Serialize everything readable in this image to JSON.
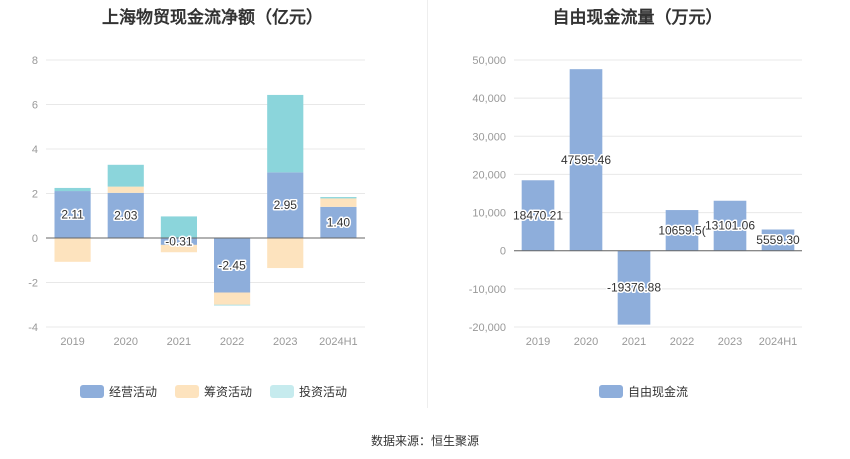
{
  "chart_data": [
    {
      "type": "bar",
      "stacked": true,
      "title": "上海物贸现金流净额（亿元）",
      "categories": [
        "2019",
        "2020",
        "2021",
        "2022",
        "2023",
        "2024H1"
      ],
      "ylim": [
        -4,
        8
      ],
      "yticks": [
        "-4",
        "-2",
        "0",
        "2",
        "4",
        "6",
        "8"
      ],
      "series": [
        {
          "name": "经营活动",
          "color": "#8eaedb",
          "values": [
            2.11,
            2.03,
            -0.31,
            -2.45,
            2.95,
            1.4
          ],
          "labels": [
            "2.11",
            "2.03",
            "-0.31",
            "-2.45",
            "2.95",
            "1.40"
          ]
        },
        {
          "name": "筹资活动",
          "color": "#fde3be",
          "values": [
            -1.07,
            0.28,
            -0.33,
            -0.55,
            -1.35,
            0.38
          ]
        },
        {
          "name": "投资活动",
          "color": "#8bd5db",
          "values": [
            0.14,
            0.98,
            0.97,
            -0.03,
            3.48,
            0.06
          ]
        }
      ],
      "grid": true,
      "legend": "bottom"
    },
    {
      "type": "bar",
      "title": "自由现金流量（万元）",
      "categories": [
        "2019",
        "2020",
        "2021",
        "2022",
        "2023",
        "2024H1"
      ],
      "ylim": [
        -20000,
        50000
      ],
      "yticks": [
        "-20,000",
        "-10,000",
        "0",
        "10,000",
        "20,000",
        "30,000",
        "40,000",
        "50,000"
      ],
      "series": [
        {
          "name": "自由现金流",
          "color": "#8eaedb",
          "values": [
            18470.21,
            47595.46,
            -19376.88,
            10659.5,
            13101.06,
            5559.3
          ],
          "labels": [
            "18470.21",
            "47595.46",
            "-19376.88",
            "10659.5(",
            "13101.06",
            "5559.30"
          ]
        }
      ],
      "grid": true,
      "legend": "bottom"
    }
  ],
  "source": "数据来源：恒生聚源"
}
